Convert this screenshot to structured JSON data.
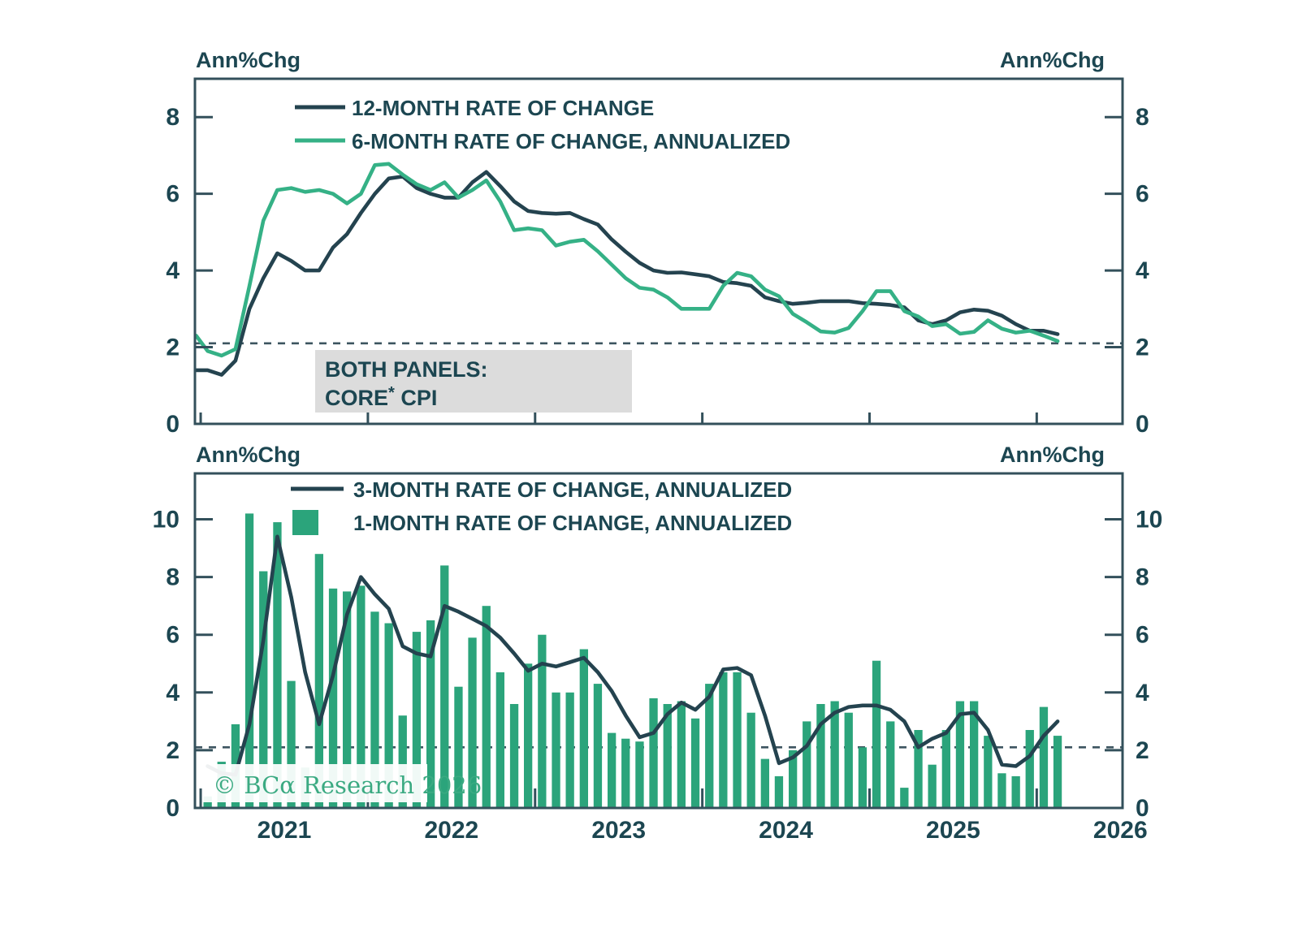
{
  "axis_unit_label": "Ann%Chg",
  "reference_line_value": 2.1,
  "note_box": {
    "lines": [
      "BOTH PANELS:",
      "CORE* CPI"
    ]
  },
  "watermark": "© BCα Research 2026",
  "colors": {
    "navy": "#24434f",
    "green_line": "#35b186",
    "bar_green": "#2ba47b",
    "text": "#1c4651",
    "axis": "#33505b",
    "dashed": "#3d5560",
    "note_bg": "#dcdcdc",
    "watermark_green": "#3baa82",
    "background": "#ffffff"
  },
  "x_axis": {
    "years": [
      "2021",
      "2022",
      "2023",
      "2024",
      "2025",
      "2026"
    ],
    "unit": "month"
  },
  "chart_data": [
    {
      "panel": "top",
      "type": "line",
      "ylabel_left": "Ann%Chg",
      "ylabel_right": "Ann%Chg",
      "ylim": [
        0,
        9
      ],
      "yticks": [
        0,
        2,
        4,
        6,
        8
      ],
      "grid": false,
      "legend_position": "inside-top-left",
      "reference_line": 2.1,
      "annotations": [
        "BOTH PANELS:",
        "CORE* CPI"
      ],
      "x_start_offset_months": -1,
      "series": [
        {
          "name": "12-MONTH RATE OF CHANGE",
          "type": "line",
          "color_key": "navy",
          "values": [
            1.4,
            1.4,
            1.28,
            1.65,
            3.0,
            3.8,
            4.45,
            4.25,
            4.0,
            4.0,
            4.6,
            4.95,
            5.5,
            6.0,
            6.4,
            6.45,
            6.15,
            6.0,
            5.9,
            5.9,
            6.3,
            6.57,
            6.2,
            5.8,
            5.55,
            5.5,
            5.48,
            5.5,
            5.34,
            5.2,
            4.81,
            4.49,
            4.2,
            4.0,
            3.94,
            3.95,
            3.9,
            3.85,
            3.7,
            3.67,
            3.6,
            3.3,
            3.2,
            3.13,
            3.16,
            3.2,
            3.2,
            3.2,
            3.15,
            3.13,
            3.1,
            3.04,
            2.7,
            2.6,
            2.7,
            2.91,
            2.98,
            2.95,
            2.82,
            2.6,
            2.43,
            2.43,
            2.34
          ]
        },
        {
          "name": "6-MONTH RATE OF CHANGE, ANNUALIZED",
          "type": "line",
          "color_key": "green_line",
          "values": [
            2.3,
            1.9,
            1.78,
            1.95,
            3.6,
            5.3,
            6.1,
            6.15,
            6.05,
            6.1,
            6.0,
            5.75,
            6.0,
            6.75,
            6.78,
            6.5,
            6.25,
            6.1,
            6.3,
            5.9,
            6.1,
            6.35,
            5.8,
            5.05,
            5.1,
            5.05,
            4.65,
            4.75,
            4.8,
            4.5,
            4.15,
            3.8,
            3.55,
            3.5,
            3.3,
            3.0,
            3.0,
            3.0,
            3.6,
            3.94,
            3.85,
            3.5,
            3.33,
            2.87,
            2.65,
            2.41,
            2.38,
            2.5,
            2.94,
            3.46,
            3.46,
            2.94,
            2.8,
            2.55,
            2.6,
            2.35,
            2.4,
            2.7,
            2.48,
            2.38,
            2.43,
            2.3,
            2.16
          ]
        }
      ]
    },
    {
      "panel": "bottom",
      "type": "bar+line",
      "ylabel_left": "Ann%Chg",
      "ylabel_right": "Ann%Chg",
      "ylim": [
        0,
        11.6
      ],
      "yticks": [
        0,
        2,
        4,
        6,
        8,
        10
      ],
      "grid": false,
      "legend_position": "inside-top-left",
      "reference_line": 2.1,
      "xtick_labels": [
        "2021",
        "2022",
        "2023",
        "2024",
        "2025",
        "2026"
      ],
      "x_start_offset_months": 0,
      "series": [
        {
          "name": "3-MONTH RATE OF CHANGE, ANNUALIZED",
          "type": "line",
          "color_key": "navy",
          "values": [
            1.45,
            1.2,
            1.15,
            2.9,
            5.8,
            9.4,
            7.3,
            4.7,
            2.9,
            4.6,
            6.7,
            8.0,
            7.4,
            6.9,
            5.6,
            5.35,
            5.25,
            7.0,
            6.8,
            6.55,
            6.3,
            5.9,
            5.35,
            4.75,
            5.0,
            4.9,
            5.05,
            5.2,
            4.7,
            4.05,
            3.2,
            2.45,
            2.6,
            3.25,
            3.65,
            3.4,
            3.85,
            4.8,
            4.85,
            4.6,
            3.2,
            1.55,
            1.75,
            2.15,
            2.9,
            3.3,
            3.5,
            3.55,
            3.55,
            3.4,
            3.0,
            2.1,
            2.4,
            2.6,
            3.25,
            3.3,
            2.7,
            1.5,
            1.45,
            1.8,
            2.5,
            3.0
          ]
        },
        {
          "name": "1-MONTH RATE OF CHANGE, ANNUALIZED",
          "type": "bar",
          "color_key": "bar_green",
          "values": [
            0.4,
            1.6,
            2.9,
            10.2,
            8.2,
            9.9,
            4.4,
            1.4,
            8.8,
            7.6,
            7.5,
            7.7,
            6.8,
            6.4,
            3.2,
            6.1,
            6.5,
            8.4,
            4.2,
            5.9,
            7.0,
            4.7,
            3.6,
            5.0,
            6.0,
            4.0,
            4.0,
            5.5,
            4.3,
            2.6,
            2.4,
            2.3,
            3.8,
            3.6,
            3.7,
            3.1,
            4.3,
            4.7,
            4.7,
            3.3,
            1.7,
            1.1,
            2.0,
            3.0,
            3.6,
            3.7,
            3.3,
            2.1,
            5.1,
            3.0,
            0.7,
            2.7,
            1.5,
            2.7,
            3.7,
            3.7,
            2.5,
            1.2,
            1.1,
            2.7,
            3.5,
            2.5
          ]
        }
      ]
    }
  ]
}
